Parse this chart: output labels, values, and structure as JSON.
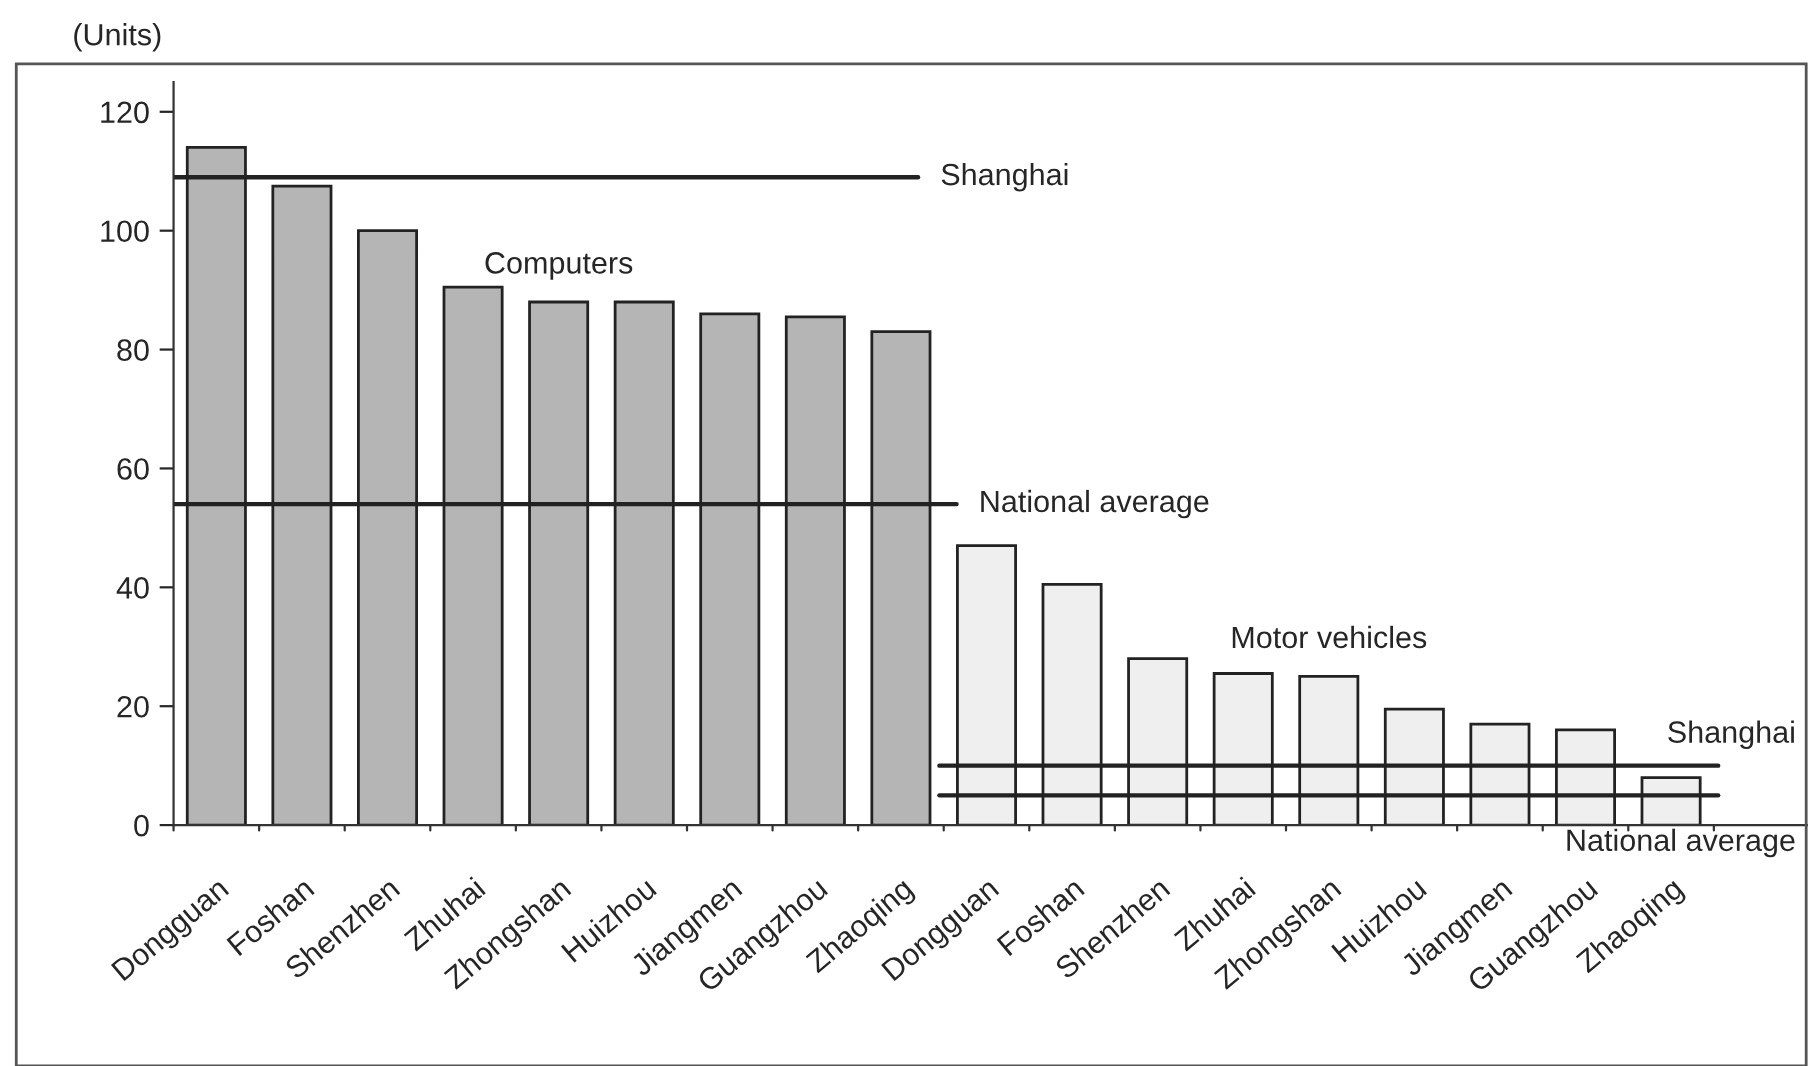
{
  "chart_data": {
    "type": "bar",
    "ylabel": "(Units)",
    "categories": [
      "Dongguan",
      "Foshan",
      "Shenzhen",
      "Zhuhai",
      "Zhongshan",
      "Huizhou",
      "Jiangmen",
      "Guangzhou",
      "Zhaoqing",
      "Dongguan",
      "Foshan",
      "Shenzhen",
      "Zhuhai",
      "Zhongshan",
      "Huizhou",
      "Jiangmen",
      "Guangzhou",
      "Zhaoqing"
    ],
    "series": [
      {
        "name": "Computers",
        "color": "#b5b5b5",
        "values": [
          114,
          107.5,
          100,
          90.5,
          88,
          88,
          86,
          85.5,
          83,
          null,
          null,
          null,
          null,
          null,
          null,
          null,
          null,
          null
        ]
      },
      {
        "name": "Motor vehicles",
        "color": "#efefef",
        "values": [
          null,
          null,
          null,
          null,
          null,
          null,
          null,
          null,
          null,
          47,
          40.5,
          28,
          25.5,
          25,
          19.5,
          17,
          16,
          8
        ]
      }
    ],
    "ref_lines": [
      {
        "axis": "y",
        "value": 109,
        "label": "Shanghai"
      },
      {
        "axis": "y",
        "value": 54,
        "label": "National average"
      },
      {
        "axis": "y",
        "value": 10,
        "label": "Shanghai"
      },
      {
        "axis": "y",
        "value": 5,
        "label": "National average"
      }
    ],
    "ylim": [
      0,
      125
    ],
    "yticks": [
      0,
      20,
      40,
      60,
      80,
      100,
      120
    ],
    "grid": false,
    "legend": false
  }
}
